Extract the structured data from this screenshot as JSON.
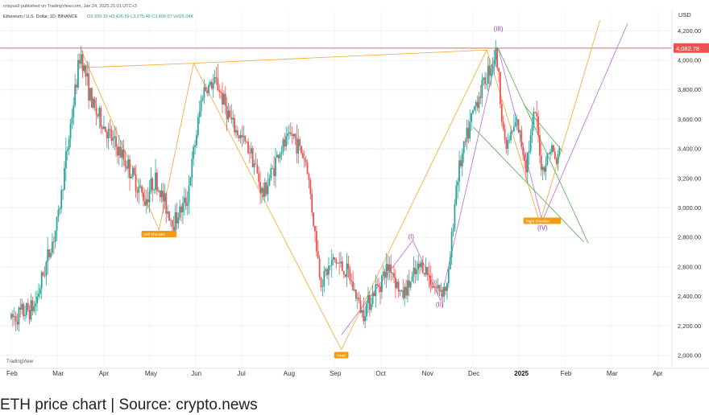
{
  "header": {
    "published": "crispus9 published on TradingView.com, Jan 24, 2025 21:01 UTC+3",
    "symbol": "Ethereum / U.S. Dollar, 1D, BINANCE",
    "ohlc": "O3,339.19  H3,426.59  L3,275.46  C3,400.07  Vol25.04K"
  },
  "caption": "ETH price chart | Source: crypto.news",
  "colors": {
    "up": "#26a69a",
    "down": "#ef5350",
    "resistance": "#f28b9a",
    "orange_wave": "#f5b041",
    "purple_wave": "#c178e0",
    "green_channel": "#5cb85c",
    "current_price_badge": "#ef5350",
    "tag_orange": "#f39c12"
  },
  "chart_data": {
    "type": "candlestick",
    "symbol": "ETHUSD",
    "interval": "1D",
    "currency": "USD",
    "ylim": [
      1950,
      4300
    ],
    "y_ticks": [
      4200,
      4000,
      3800,
      3600,
      3400,
      3200,
      3000,
      2800,
      2600,
      2400,
      2200,
      2000
    ],
    "y_tick_labels": [
      "4,200.00",
      "4,000.00",
      "3,800.00",
      "3,600.00",
      "3,400.00",
      "3,200.00",
      "3,000.00",
      "2,800.00",
      "2,600.00",
      "2,400.00",
      "2,200.00",
      "2,000.00"
    ],
    "x_labels": [
      "Feb",
      "Mar",
      "Apr",
      "May",
      "Jun",
      "Jul",
      "Aug",
      "Sep",
      "Oct",
      "Nov",
      "Dec",
      "2025",
      "Feb",
      "Mar",
      "Apr"
    ],
    "resistance_level": 4082.78,
    "resistance_label": "4,082.78",
    "current_price": 3400.07,
    "currency_label": "USD",
    "trend_anchors": [
      {
        "month": 0.0,
        "price": 2250
      },
      {
        "month": 0.5,
        "price": 2330
      },
      {
        "month": 1.0,
        "price": 2900
      },
      {
        "month": 1.3,
        "price": 3600
      },
      {
        "month": 1.5,
        "price": 4060
      },
      {
        "month": 1.75,
        "price": 3700
      },
      {
        "month": 2.1,
        "price": 3500
      },
      {
        "month": 2.5,
        "price": 3300
      },
      {
        "month": 2.9,
        "price": 3050
      },
      {
        "month": 3.1,
        "price": 3200
      },
      {
        "month": 3.5,
        "price": 2900
      },
      {
        "month": 3.8,
        "price": 3050
      },
      {
        "month": 4.15,
        "price": 3800
      },
      {
        "month": 4.45,
        "price": 3850
      },
      {
        "month": 4.8,
        "price": 3550
      },
      {
        "month": 5.2,
        "price": 3380
      },
      {
        "month": 5.45,
        "price": 3080
      },
      {
        "month": 5.8,
        "price": 3380
      },
      {
        "month": 6.1,
        "price": 3500
      },
      {
        "month": 6.4,
        "price": 3300
      },
      {
        "month": 6.7,
        "price": 2500
      },
      {
        "month": 7.0,
        "price": 2650
      },
      {
        "month": 7.3,
        "price": 2550
      },
      {
        "month": 7.6,
        "price": 2290
      },
      {
        "month": 7.9,
        "price": 2450
      },
      {
        "month": 8.2,
        "price": 2620
      },
      {
        "month": 8.45,
        "price": 2400
      },
      {
        "month": 8.9,
        "price": 2620
      },
      {
        "month": 9.2,
        "price": 2450
      },
      {
        "month": 9.45,
        "price": 2460
      },
      {
        "month": 9.65,
        "price": 3200
      },
      {
        "month": 9.85,
        "price": 3450
      },
      {
        "month": 10.05,
        "price": 3700
      },
      {
        "month": 10.3,
        "price": 3900
      },
      {
        "month": 10.5,
        "price": 4060
      },
      {
        "month": 10.7,
        "price": 3400
      },
      {
        "month": 10.95,
        "price": 3580
      },
      {
        "month": 11.15,
        "price": 3300
      },
      {
        "month": 11.35,
        "price": 3650
      },
      {
        "month": 11.5,
        "price": 3250
      },
      {
        "month": 11.7,
        "price": 3420
      },
      {
        "month": 11.8,
        "price": 3300
      },
      {
        "month": 11.9,
        "price": 3400
      }
    ],
    "annotations": {
      "waves": [
        {
          "label": "(I)",
          "month": 8.7,
          "price": 2790
        },
        {
          "label": "(II)",
          "month": 9.3,
          "price": 2330
        },
        {
          "label": "(III)",
          "month": 10.55,
          "price": 4200
        },
        {
          "label": "(IV)",
          "month": 11.5,
          "price": 2850
        }
      ],
      "tags": [
        {
          "label": "Left Shoulder",
          "month": 3.2,
          "price": 2820
        },
        {
          "label": "Head",
          "month": 7.15,
          "price": 2000
        },
        {
          "label": "Right Shoulder",
          "month": 11.5,
          "price": 2910
        }
      ]
    }
  }
}
